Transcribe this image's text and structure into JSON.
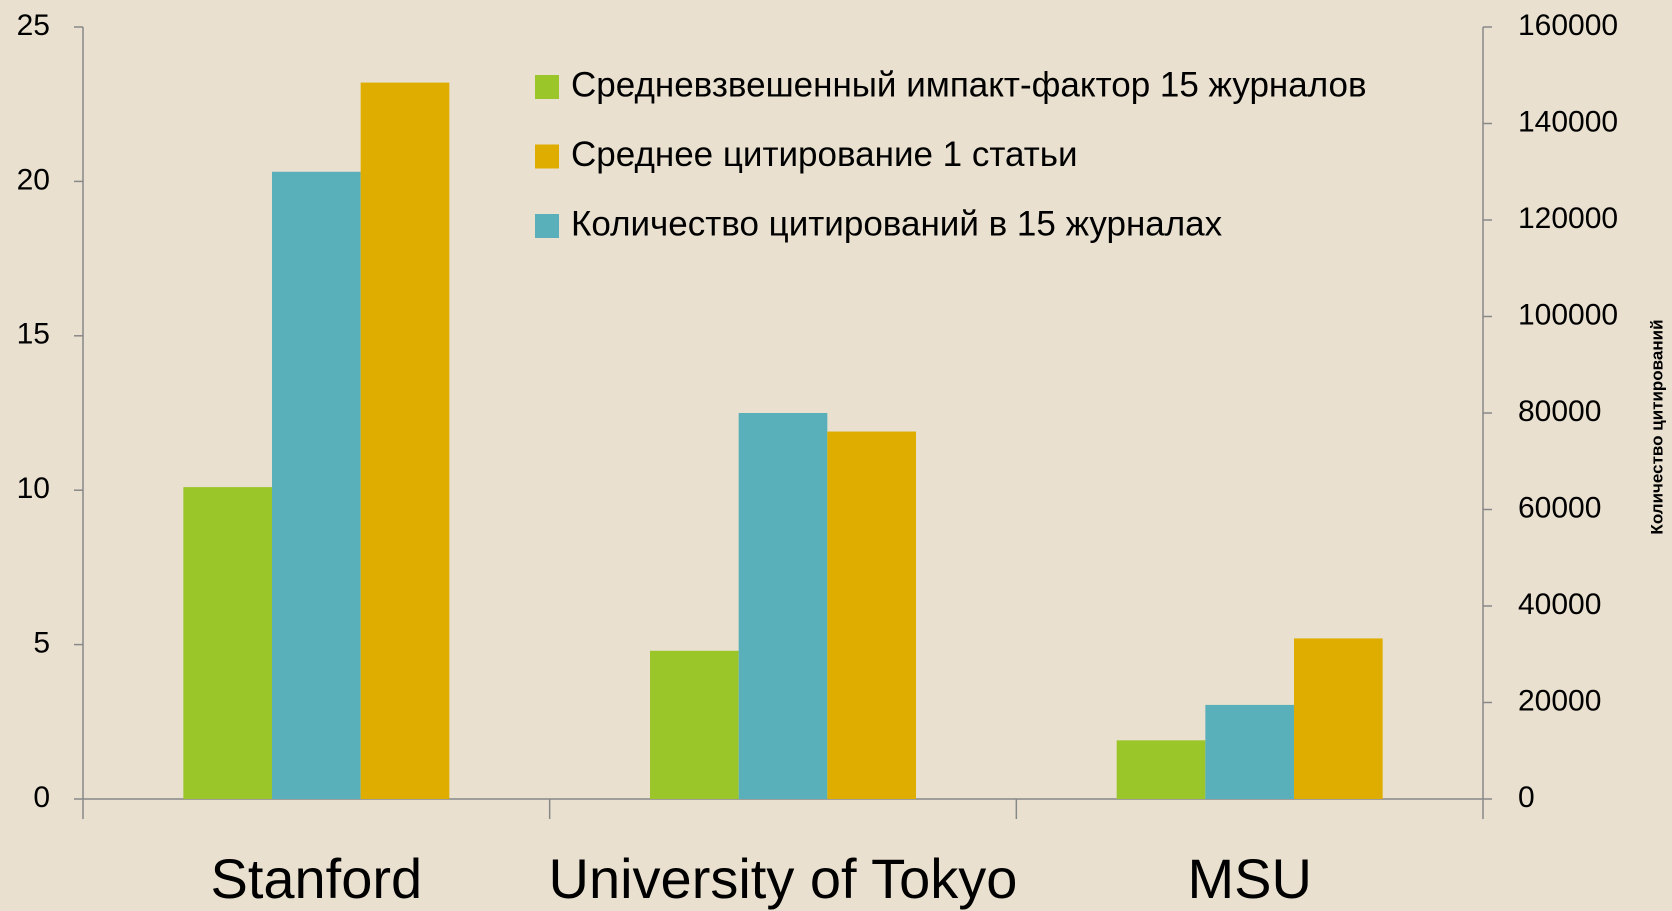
{
  "chart_data": {
    "type": "bar",
    "categories": [
      "Stanford",
      "University of Tokyo",
      "MSU"
    ],
    "series": [
      {
        "name": "Средневзвешенный импакт-фактор 15 журналов",
        "color": "#9bc62a",
        "values": [
          10.1,
          4.8,
          1.9
        ]
      },
      {
        "name": "Количество цитирований в 15 журналах",
        "color": "#5ab0ba",
        "values": [
          130000,
          80000,
          19500
        ],
        "axis": "y2"
      },
      {
        "name": "Среднее цитирование 1 статьи",
        "color": "#dfad00",
        "values": [
          23.2,
          11.9,
          5.2
        ]
      }
    ],
    "ylim": [
      0,
      25
    ],
    "yticks": [
      0,
      5,
      10,
      15,
      20,
      25
    ],
    "y2lim": [
      0,
      160000
    ],
    "y2ticks": [
      0,
      20000,
      40000,
      60000,
      80000,
      100000,
      120000,
      140000,
      160000
    ],
    "y2label": "Количество цитирований",
    "legend": "top-right"
  }
}
